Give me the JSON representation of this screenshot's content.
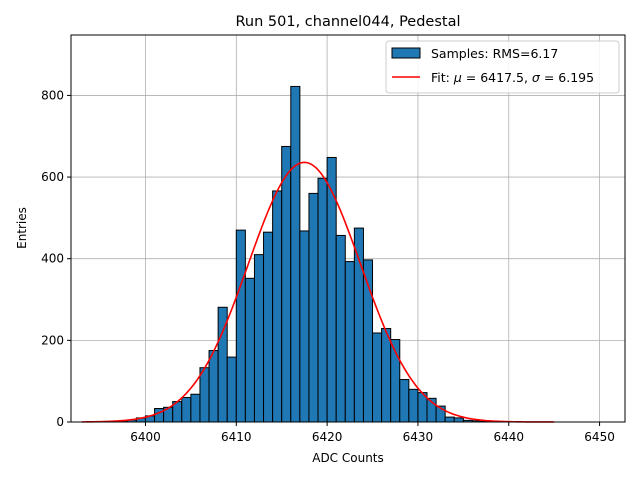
{
  "chart_data": {
    "type": "bar",
    "title": "Run 501, channel044, Pedestal",
    "xlabel": "ADC Counts",
    "ylabel": "Entries",
    "xlim": [
      6391.8,
      6452.8
    ],
    "ylim": [
      0,
      948
    ],
    "xticks": [
      6400,
      6410,
      6420,
      6430,
      6440,
      6450
    ],
    "yticks": [
      0,
      200,
      400,
      600,
      800
    ],
    "grid": true,
    "legend_position": "top-right",
    "colors": {
      "bar_fill": "#1f77b4",
      "bar_edge": "#000000",
      "fit_line": "#ff0000",
      "grid": "#b0b0b0"
    },
    "histogram": {
      "name": "Samples: RMS=6.17",
      "bin_left_edges": [
        6394,
        6395,
        6396,
        6397,
        6398,
        6399,
        6400,
        6401,
        6402,
        6403,
        6404,
        6405,
        6406,
        6407,
        6408,
        6409,
        6410,
        6411,
        6412,
        6413,
        6414,
        6415,
        6416,
        6417,
        6418,
        6419,
        6420,
        6421,
        6422,
        6423,
        6424,
        6425,
        6426,
        6427,
        6428,
        6429,
        6430,
        6431,
        6432,
        6433,
        6434,
        6435,
        6436,
        6437,
        6438,
        6439
      ],
      "bin_width": 1,
      "counts": [
        1,
        1,
        2,
        3,
        5,
        10,
        15,
        33,
        36,
        50,
        60,
        68,
        133,
        175,
        281,
        159,
        470,
        352,
        410,
        465,
        566,
        675,
        822,
        468,
        560,
        597,
        648,
        457,
        393,
        475,
        397,
        218,
        229,
        202,
        104,
        80,
        72,
        58,
        39,
        12,
        10,
        4,
        3,
        2,
        1,
        1
      ]
    },
    "fit": {
      "name": "Fit: μ = 6417.5, σ = 6.195",
      "name_parts": {
        "prefix": "Fit: ",
        "mu_sym": "μ",
        "mu_eq": " = 6417.5, ",
        "sigma_sym": "σ",
        "sigma_eq": " = 6.195"
      },
      "type": "gaussian",
      "mu": 6417.5,
      "sigma": 6.195,
      "amplitude": 636,
      "x_range": [
        6393,
        6445
      ]
    }
  }
}
